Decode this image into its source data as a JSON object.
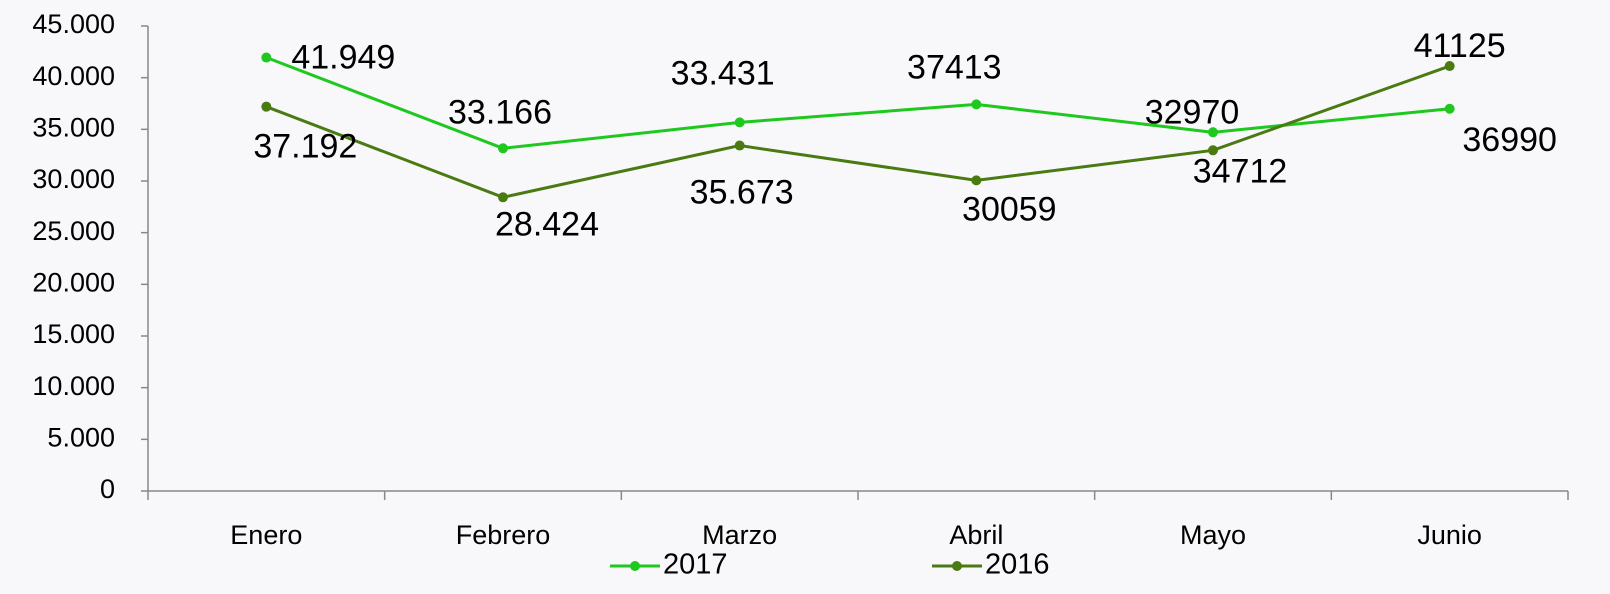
{
  "chart_data": {
    "type": "line",
    "categories": [
      "Enero",
      "Febrero",
      "Marzo",
      "Abril",
      "Mayo",
      "Junio"
    ],
    "series": [
      {
        "name": "2017",
        "color": "#1ec81e",
        "values": [
          41949,
          33166,
          35673,
          37413,
          34712,
          36990
        ],
        "value_labels": [
          "41.949",
          "33.166",
          "35.673",
          "37413",
          "34712",
          "36990"
        ]
      },
      {
        "name": "2016",
        "color": "#4a7a12",
        "values": [
          37192,
          28424,
          33431,
          30059,
          32970,
          41125
        ],
        "value_labels": [
          "37.192",
          "28.424",
          "33.431",
          "30059",
          "32970",
          "41125"
        ]
      }
    ],
    "ylim": [
      0,
      45000
    ],
    "yticks": [
      0,
      {
        "value": 5000,
        "label": "5.000"
      },
      {
        "value": 10000,
        "label": "10.000"
      },
      {
        "value": 15000,
        "label": "15.000"
      },
      {
        "value": 20000,
        "label": "20.000"
      },
      {
        "value": 25000,
        "label": "25.000"
      },
      {
        "value": 30000,
        "label": "30.000"
      },
      {
        "value": 35000,
        "label": "35.000"
      },
      {
        "value": 40000,
        "label": "40.000"
      },
      {
        "value": 45000,
        "label": "45.000"
      }
    ],
    "grid": false,
    "legend": "bottom"
  }
}
